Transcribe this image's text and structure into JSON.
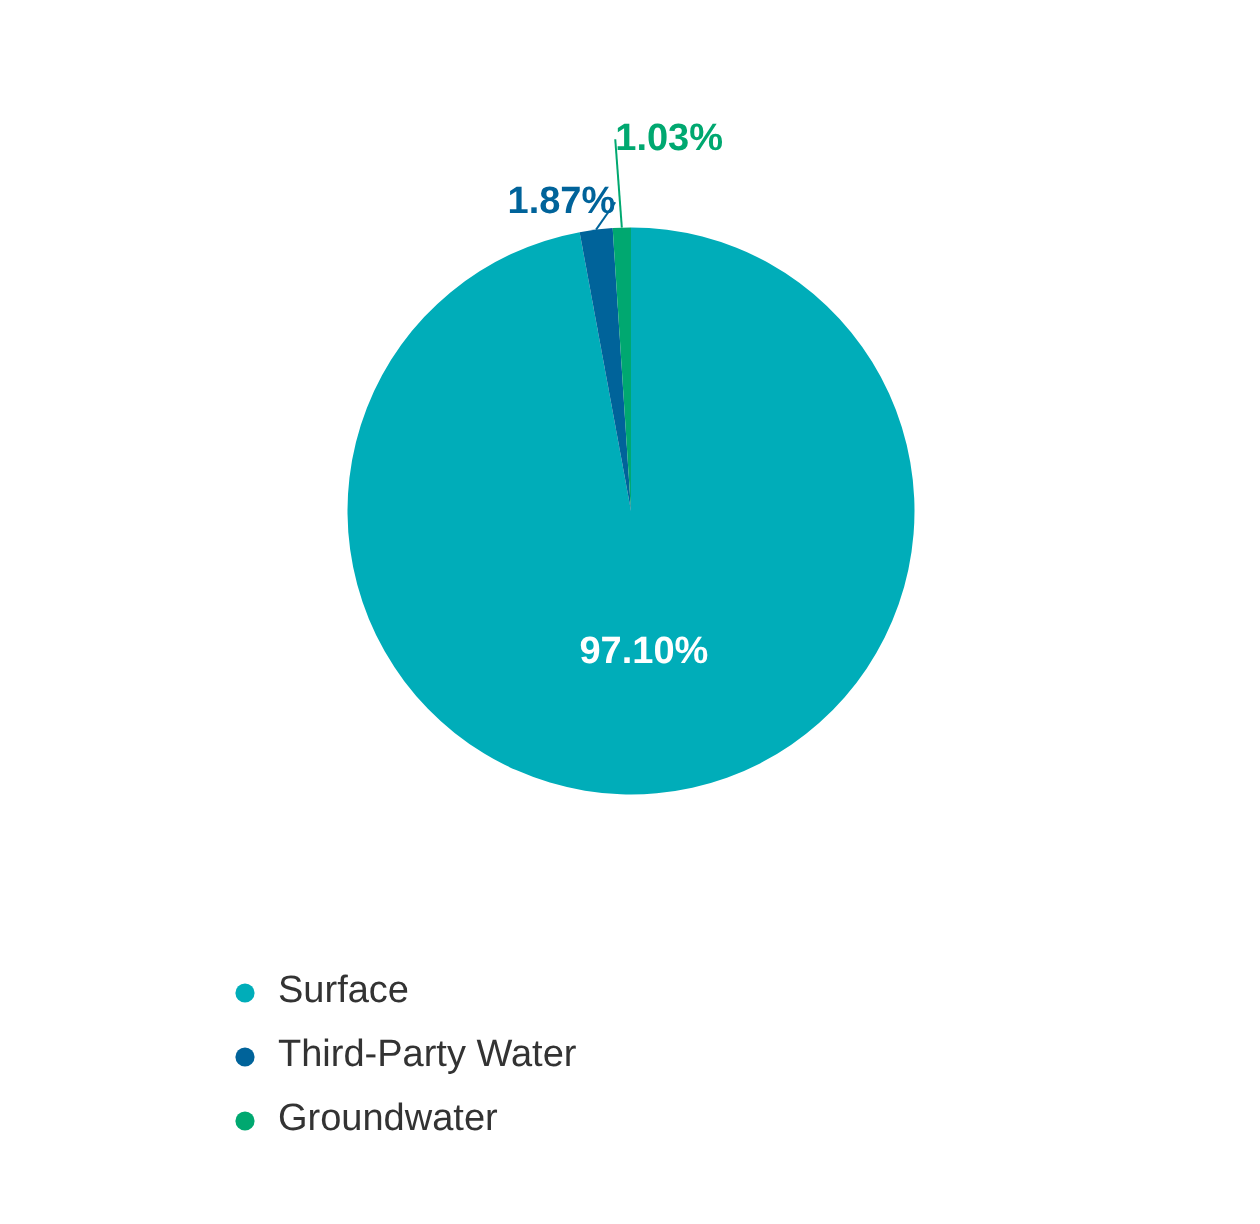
{
  "chart_data": {
    "type": "pie",
    "categories": [
      "Surface",
      "Third-Party Water",
      "Groundwater"
    ],
    "values": [
      97.1,
      1.87,
      1.03
    ],
    "value_labels": [
      "97.10%",
      "1.87%",
      "1.03%"
    ],
    "colors": [
      "#00adb9",
      "#00639a",
      "#00a870"
    ],
    "legend": "bottom"
  }
}
